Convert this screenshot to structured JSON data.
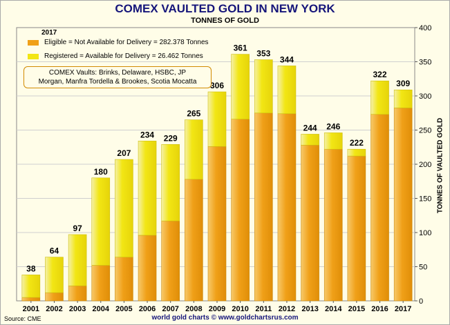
{
  "colors": {
    "eligible": "#f0a018",
    "registered": "#f2e614",
    "title": "#15157a",
    "background": "#fffde8"
  },
  "chart_data": {
    "type": "bar",
    "stacked": true,
    "title": "COMEX VAULTED GOLD IN NEW YORK",
    "subtitle": "TONNES OF GOLD",
    "ylabel": "TONNES OF VAULTED GOLD",
    "ylim": [
      0,
      400
    ],
    "yticks": [
      "0",
      "50",
      "100",
      "150",
      "200",
      "250",
      "300",
      "350",
      "400"
    ],
    "categories": [
      "2001",
      "2002",
      "2003",
      "2004",
      "2005",
      "2006",
      "2007",
      "2008",
      "2009",
      "2010",
      "2011",
      "2012",
      "2013",
      "2014",
      "2015",
      "2016",
      "2017"
    ],
    "totals": [
      38,
      64,
      97,
      180,
      207,
      234,
      229,
      265,
      306,
      361,
      353,
      344,
      244,
      246,
      222,
      322,
      309
    ],
    "series": [
      {
        "name": "Eligible",
        "values": [
          5,
          12,
          22,
          52,
          64,
          96,
          117,
          178,
          226,
          266,
          275,
          274,
          228,
          222,
          212,
          273,
          282.378
        ]
      },
      {
        "name": "Registered",
        "values": [
          33,
          52,
          75,
          128,
          143,
          138,
          112,
          87,
          80,
          95,
          78,
          70,
          16,
          24,
          10,
          49,
          26.462
        ]
      }
    ],
    "legend": {
      "year": "2017",
      "eligible": "Eligible = Not Available for Delivery = 282.378 Tonnes",
      "registered": "Registered = Available for Delivery = 26.462 Tonnes",
      "placement": "top-left"
    },
    "annotation": {
      "line1": "COMEX Vaults: Brinks, Delaware, HSBC, JP",
      "line2": "Morgan, Manfra Tordella & Brookes, Scotia Mocatta"
    },
    "y_axis_side": "right",
    "grid": true
  },
  "footer": {
    "source": "Source: CME",
    "credit": "world gold charts © www.goldchartsrus.com"
  }
}
